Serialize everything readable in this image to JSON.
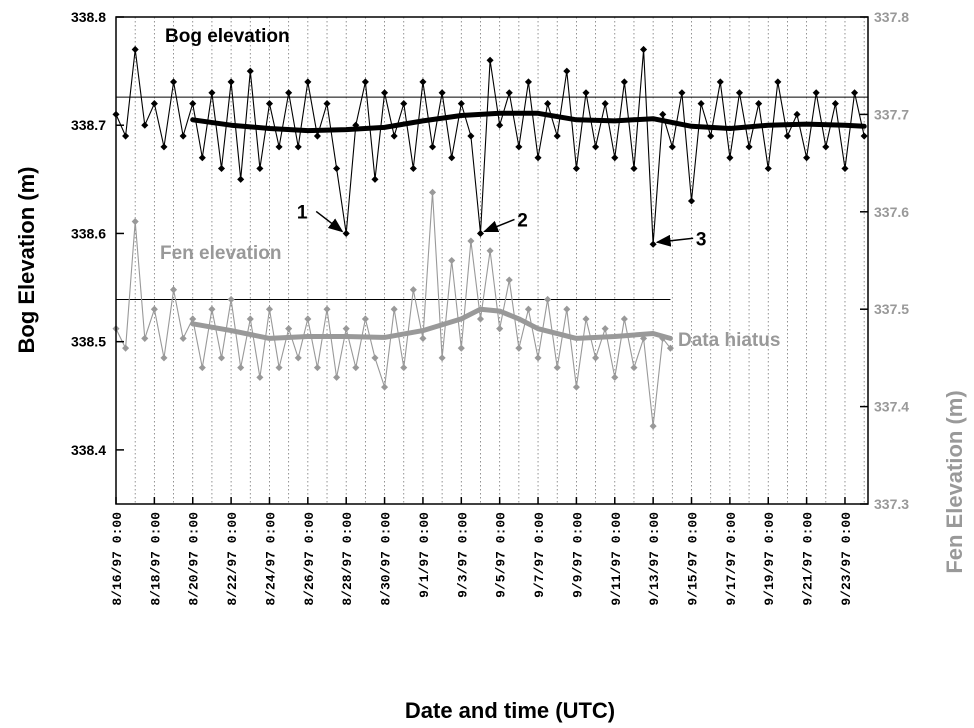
{
  "chart_data": {
    "type": "line",
    "xlabel": "Date and time (UTC)",
    "ylabel_left": "Bog Elevation (m)",
    "ylabel_right": "Fen Elevation (m)",
    "ylim_left": [
      338.35,
      338.8
    ],
    "ylim_right": [
      337.3,
      337.8
    ],
    "yticks_left": [
      "338.4",
      "338.5",
      "338.6",
      "338.7",
      "338.8"
    ],
    "yticks_right": [
      "337.3",
      "337.4",
      "337.5",
      "337.6",
      "337.7",
      "337.8"
    ],
    "x_range_days": [
      0,
      39.2
    ],
    "xticks": [
      {
        "day": 0,
        "label": "8/16/97  0:00"
      },
      {
        "day": 2,
        "label": "8/18/97  0:00"
      },
      {
        "day": 4,
        "label": "8/20/97  0:00"
      },
      {
        "day": 6,
        "label": "8/22/97  0:00"
      },
      {
        "day": 8,
        "label": "8/24/97  0:00"
      },
      {
        "day": 10,
        "label": "8/26/97  0:00"
      },
      {
        "day": 12,
        "label": "8/28/97  0:00"
      },
      {
        "day": 14,
        "label": "8/30/97  0:00"
      },
      {
        "day": 16,
        "label": "9/1/97  0:00"
      },
      {
        "day": 18,
        "label": "9/3/97  0:00"
      },
      {
        "day": 20,
        "label": "9/5/97  0:00"
      },
      {
        "day": 22,
        "label": "9/7/97  0:00"
      },
      {
        "day": 24,
        "label": "9/9/97  0:00"
      },
      {
        "day": 26,
        "label": "9/11/97  0:00"
      },
      {
        "day": 28,
        "label": "9/13/97  0:00"
      },
      {
        "day": 30,
        "label": "9/15/97  0:00"
      },
      {
        "day": 32,
        "label": "9/17/97  0:00"
      },
      {
        "day": 34,
        "label": "9/19/97  0:00"
      },
      {
        "day": 36,
        "label": "9/21/97  0:00"
      },
      {
        "day": 38,
        "label": "9/23/97  0:00"
      }
    ],
    "grid_x": "dotted-daily",
    "series": [
      {
        "name": "Bog elevation",
        "axis": "left",
        "color": "#000000",
        "reference_level": 338.726,
        "x": [
          0,
          0.5,
          1,
          1.5,
          2,
          2.5,
          3,
          3.5,
          4,
          4.5,
          5,
          5.5,
          6,
          6.5,
          7,
          7.5,
          8,
          8.5,
          9,
          9.5,
          10,
          10.5,
          11,
          11.5,
          12,
          12.5,
          13,
          13.5,
          14,
          14.5,
          15,
          15.5,
          16,
          16.5,
          17,
          17.5,
          18,
          18.5,
          19,
          19.5,
          20,
          20.5,
          21,
          21.5,
          22,
          22.5,
          23,
          23.5,
          24,
          24.5,
          25,
          25.5,
          26,
          26.5,
          27,
          27.5,
          28,
          28.5,
          29,
          29.5,
          30,
          30.5,
          31,
          31.5,
          32,
          32.5,
          33,
          33.5,
          34,
          34.5,
          35,
          35.5,
          36,
          36.5,
          37,
          37.5,
          38,
          38.5,
          39
        ],
        "values": [
          338.71,
          338.69,
          338.77,
          338.7,
          338.72,
          338.68,
          338.74,
          338.69,
          338.72,
          338.67,
          338.73,
          338.66,
          338.74,
          338.65,
          338.75,
          338.66,
          338.72,
          338.68,
          338.73,
          338.68,
          338.74,
          338.69,
          338.72,
          338.66,
          338.6,
          338.7,
          338.74,
          338.65,
          338.73,
          338.69,
          338.72,
          338.66,
          338.74,
          338.68,
          338.73,
          338.67,
          338.72,
          338.69,
          338.6,
          338.76,
          338.7,
          338.73,
          338.68,
          338.74,
          338.67,
          338.72,
          338.69,
          338.75,
          338.66,
          338.73,
          338.68,
          338.72,
          338.67,
          338.74,
          338.66,
          338.77,
          338.59,
          338.71,
          338.68,
          338.73,
          338.63,
          338.72,
          338.69,
          338.74,
          338.67,
          338.73,
          338.68,
          338.72,
          338.66,
          338.74,
          338.69,
          338.71,
          338.67,
          338.73,
          338.68,
          338.72,
          338.66,
          338.73,
          338.69
        ]
      },
      {
        "name": "Bog elevation trend",
        "axis": "left",
        "color": "#000000",
        "x": [
          4,
          6,
          8,
          10,
          12,
          14,
          16,
          18,
          20,
          22,
          24,
          26,
          28,
          30,
          32,
          34,
          36,
          38,
          39
        ],
        "values": [
          338.705,
          338.7,
          338.697,
          338.695,
          338.696,
          338.698,
          338.704,
          338.709,
          338.711,
          338.711,
          338.705,
          338.704,
          338.706,
          338.699,
          338.697,
          338.7,
          338.701,
          338.7,
          338.699
        ]
      },
      {
        "name": "Fen elevation",
        "axis": "right",
        "color": "#999999",
        "reference_level": 337.51,
        "x": [
          0,
          0.5,
          1,
          1.5,
          2,
          2.5,
          3,
          3.5,
          4,
          4.5,
          5,
          5.5,
          6,
          6.5,
          7,
          7.5,
          8,
          8.5,
          9,
          9.5,
          10,
          10.5,
          11,
          11.5,
          12,
          12.5,
          13,
          13.5,
          14,
          14.5,
          15,
          15.5,
          16,
          16.5,
          17,
          17.5,
          18,
          18.5,
          19,
          19.5,
          20,
          20.5,
          21,
          21.5,
          22,
          22.5,
          23,
          23.5,
          24,
          24.5,
          25,
          25.5,
          26,
          26.5,
          27,
          27.5,
          28,
          28.5,
          28.9
        ],
        "values": [
          337.48,
          337.46,
          337.59,
          337.47,
          337.5,
          337.45,
          337.52,
          337.47,
          337.49,
          337.44,
          337.5,
          337.45,
          337.51,
          337.44,
          337.49,
          337.43,
          337.5,
          337.44,
          337.48,
          337.45,
          337.49,
          337.44,
          337.5,
          337.43,
          337.48,
          337.44,
          337.49,
          337.45,
          337.42,
          337.5,
          337.44,
          337.52,
          337.47,
          337.62,
          337.45,
          337.55,
          337.46,
          337.57,
          337.49,
          337.56,
          337.48,
          337.53,
          337.46,
          337.5,
          337.45,
          337.51,
          337.44,
          337.5,
          337.42,
          337.49,
          337.45,
          337.48,
          337.43,
          337.49,
          337.44,
          337.47,
          337.38,
          337.47,
          337.46
        ]
      },
      {
        "name": "Fen elevation trend",
        "axis": "right",
        "color": "#999999",
        "x": [
          4,
          6,
          8,
          10,
          12,
          14,
          16,
          18,
          19,
          20,
          21,
          22,
          24,
          26,
          28,
          28.9
        ],
        "values": [
          337.485,
          337.478,
          337.47,
          337.472,
          337.472,
          337.471,
          337.478,
          337.49,
          337.5,
          337.498,
          337.49,
          337.48,
          337.47,
          337.472,
          337.475,
          337.47
        ]
      }
    ],
    "labels": {
      "bog": "Bog elevation",
      "fen": "Fen elevation",
      "hiatus": "Data hiatus"
    },
    "annotations": [
      {
        "label": "1",
        "x": 12.0,
        "y": 338.6,
        "axis": "left"
      },
      {
        "label": "2",
        "x": 19.0,
        "y": 338.6,
        "axis": "left"
      },
      {
        "label": "3",
        "x": 28.0,
        "y": 338.59,
        "axis": "left"
      }
    ]
  }
}
